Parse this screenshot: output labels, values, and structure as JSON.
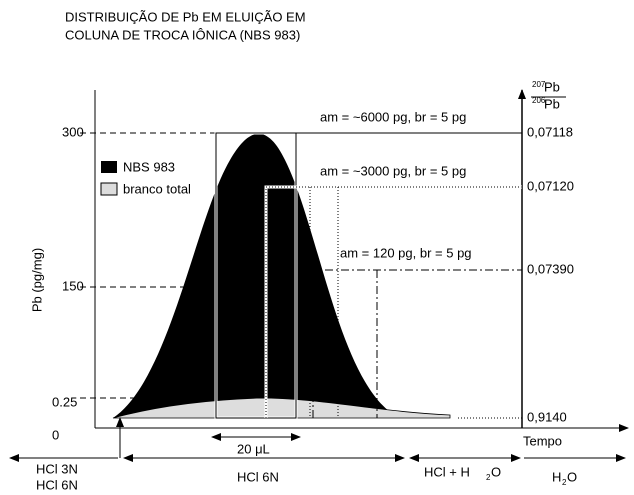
{
  "title": {
    "line1": "DISTRIBUIÇÃO DE Pb EM ELUIÇÃO EM",
    "line2": "COLUNA DE TROCA IÔNICA (NBS 983)"
  },
  "y_axis": {
    "label": "Pb (pg/mg)",
    "ticks": [
      "300",
      "150",
      "0.25",
      "0"
    ]
  },
  "right_axis": {
    "numerator_mass": "207",
    "numerator_element": "Pb",
    "denominator_mass": "206",
    "denominator_element": "Pb",
    "ticks": [
      "0,07118",
      "0,07120",
      "0,07390",
      "0,9140"
    ]
  },
  "annotations": [
    "am = ~6000 pg, br = 5 pg",
    "am = ~3000 pg, br = 5 pg",
    "am = 120 pg, br = 5 pg"
  ],
  "legend": [
    "NBS 983",
    "branco total"
  ],
  "volume_label": "20 μL",
  "x_axis_label": "Tempo",
  "steps": {
    "first_a": "HCl  3N",
    "first_b": "HCl  6N",
    "second": "HCl 6N",
    "third_main": "HCl + H",
    "third_sub": "2",
    "third_end": "O",
    "fourth_main": "H",
    "fourth_sub": "2",
    "fourth_end": "O"
  }
}
